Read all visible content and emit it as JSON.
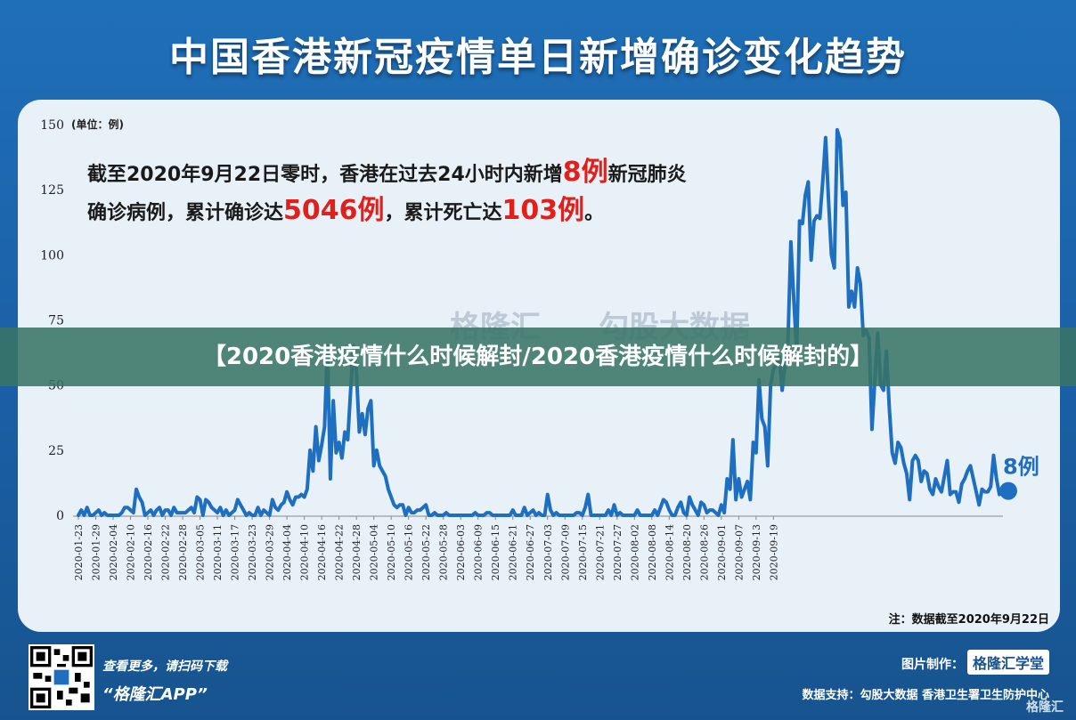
{
  "title": "中国香港新冠疫情单日新增确诊变化趋势",
  "headline": {
    "line1_a": "截至2020年9月22日零时，香港在过去24小时内新增",
    "line1_red": "8例",
    "line1_b": "新冠肺炎",
    "line2_a": "确诊病例，累计确诊达",
    "line2_red1": "5046例",
    "line2_b": "，累计死亡达",
    "line2_red2": "103例",
    "line2_c": "。"
  },
  "banner": "【2020香港疫情什么时候解封/2020香港疫情什么时候解封的】",
  "footnote": "注：数据截至2020年9月22日",
  "footer": {
    "line1": "查看更多，请扫码下载",
    "line2": "“格隆汇APP”",
    "credit_label": "图片制作：",
    "credit_logo": "格隆汇学堂",
    "support": "数据支持：勾股大数据  香港卫生署卫生防护中心"
  },
  "watermark": {
    "left": "格隆汇",
    "right": "勾股大数据",
    "corner": "格隆汇"
  },
  "colors": {
    "line": "#1f6fc0",
    "accent_red": "#e0201b",
    "background": "#1f6fb8"
  },
  "chart_data": {
    "type": "line",
    "y_unit_label": "(单位：例)",
    "ylim": [
      0,
      150
    ],
    "y_ticks": [
      0,
      25,
      50,
      75,
      100,
      125,
      150
    ],
    "grid": false,
    "x_start": "2020-01-23",
    "x_tick_labels": [
      "2020-01-23",
      "2020-01-29",
      "2020-02-04",
      "2020-02-10",
      "2020-02-16",
      "2020-02-22",
      "2020-02-28",
      "2020-03-05",
      "2020-03-11",
      "2020-03-17",
      "2020-03-23",
      "2020-03-29",
      "2020-04-04",
      "2020-04-10",
      "2020-04-16",
      "2020-04-22",
      "2020-04-28",
      "2020-05-04",
      "2020-05-10",
      "2020-05-16",
      "2020-05-22",
      "2020-05-28",
      "2020-06-03",
      "2020-06-09",
      "2020-06-15",
      "2020-06-21",
      "2020-06-27",
      "2020-07-03",
      "2020-07-09",
      "2020-07-15",
      "2020-07-21",
      "2020-07-27",
      "2020-08-02",
      "2020-08-08",
      "2020-08-14",
      "2020-08-20",
      "2020-08-26",
      "2020-09-01",
      "2020-09-07",
      "2020-09-13",
      "2020-09-19"
    ],
    "end_label": "8例",
    "series": [
      {
        "values": [
          0,
          2,
          0,
          3,
          0,
          0,
          1,
          2,
          0,
          1,
          0,
          0,
          0,
          0,
          0,
          1,
          3,
          3,
          2,
          1,
          10,
          7,
          5,
          0,
          1,
          2,
          0,
          2,
          3,
          0,
          2,
          2,
          0,
          3,
          1,
          1,
          1,
          1,
          2,
          3,
          1,
          7,
          6,
          0,
          6,
          5,
          3,
          2,
          1,
          3,
          0,
          2,
          0,
          1,
          2,
          6,
          4,
          2,
          0,
          1,
          0,
          0,
          3,
          0,
          2,
          1,
          0,
          6,
          3,
          2,
          4,
          5,
          9,
          6,
          4,
          7,
          7,
          8,
          7,
          10,
          25,
          17,
          34,
          21,
          27,
          34,
          65,
          14,
          44,
          24,
          28,
          22,
          32,
          29,
          48,
          65,
          55,
          32,
          39,
          31,
          41,
          44,
          19,
          25,
          19,
          17,
          15,
          10,
          7,
          4,
          3,
          4,
          4,
          0,
          3,
          1,
          1,
          2,
          2,
          3,
          4,
          0,
          0,
          1,
          0,
          0,
          0,
          1,
          0,
          0,
          0,
          0,
          0,
          0,
          0,
          0,
          0,
          1,
          0,
          0,
          0,
          1,
          1,
          0,
          0,
          0,
          0,
          0,
          0,
          0,
          2,
          0,
          0,
          0,
          3,
          0,
          1,
          2,
          0,
          1,
          0,
          0,
          8,
          2,
          0,
          1,
          0,
          0,
          0,
          0,
          0,
          0,
          1,
          1,
          0,
          3,
          8,
          0,
          0,
          0,
          0,
          0,
          0,
          2,
          0,
          4,
          0,
          1,
          0,
          0,
          0,
          0,
          0,
          2,
          0,
          0,
          0,
          0,
          0,
          2,
          0,
          3,
          6,
          5,
          2,
          0,
          0,
          3,
          5,
          1,
          0,
          7,
          4,
          2,
          0,
          5,
          4,
          1,
          2,
          2,
          1,
          0,
          4,
          1,
          14,
          10,
          29,
          6,
          14,
          7,
          10,
          13,
          6,
          28,
          24,
          52,
          37,
          34,
          19,
          50,
          56,
          58,
          61,
          48,
          58,
          67,
          105,
          83,
          63,
          113,
          112,
          123,
          128,
          98,
          113,
          115,
          114,
          128,
          145,
          121,
          100,
          95,
          148,
          144,
          119,
          124,
          80,
          86,
          80,
          95,
          89,
          69,
          71,
          68,
          33,
          52,
          70,
          50,
          48,
          63,
          41,
          24,
          20,
          28,
          26,
          20,
          16,
          6,
          21,
          23,
          21,
          13,
          17,
          16,
          10,
          8,
          14,
          11,
          9,
          15,
          21,
          8,
          9,
          9,
          5,
          12,
          14,
          17,
          19,
          14,
          9,
          4,
          10,
          9,
          9,
          11,
          23,
          14,
          8
        ]
      }
    ]
  }
}
